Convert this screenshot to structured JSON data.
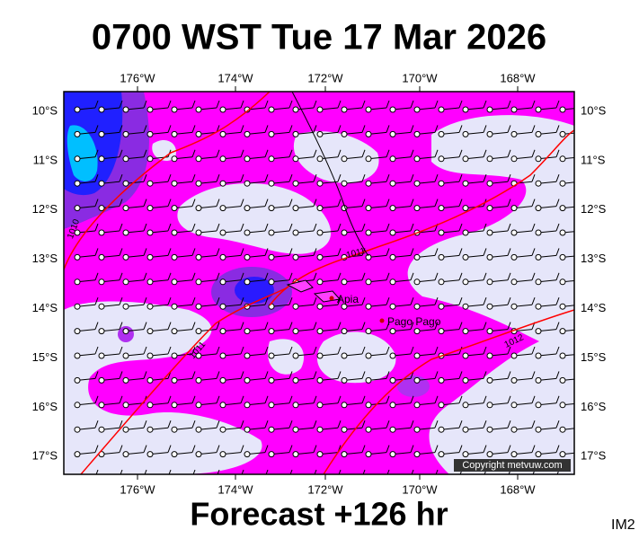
{
  "title": "0700 WST Tue 17 Mar 2026",
  "footer": "Forecast +126 hr",
  "image_id": "IM2",
  "copyright": "Copyright metvuw.com",
  "longitudes": [
    "176°W",
    "174°W",
    "172°W",
    "170°W",
    "168°W"
  ],
  "latitudes": [
    "10°S",
    "11°S",
    "12°S",
    "13°S",
    "14°S",
    "15°S",
    "16°S",
    "17°S"
  ],
  "places": [
    "Apia",
    "Pago Pago"
  ],
  "isobar_labels": [
    "1010",
    "1011",
    "1011",
    "1012"
  ]
}
